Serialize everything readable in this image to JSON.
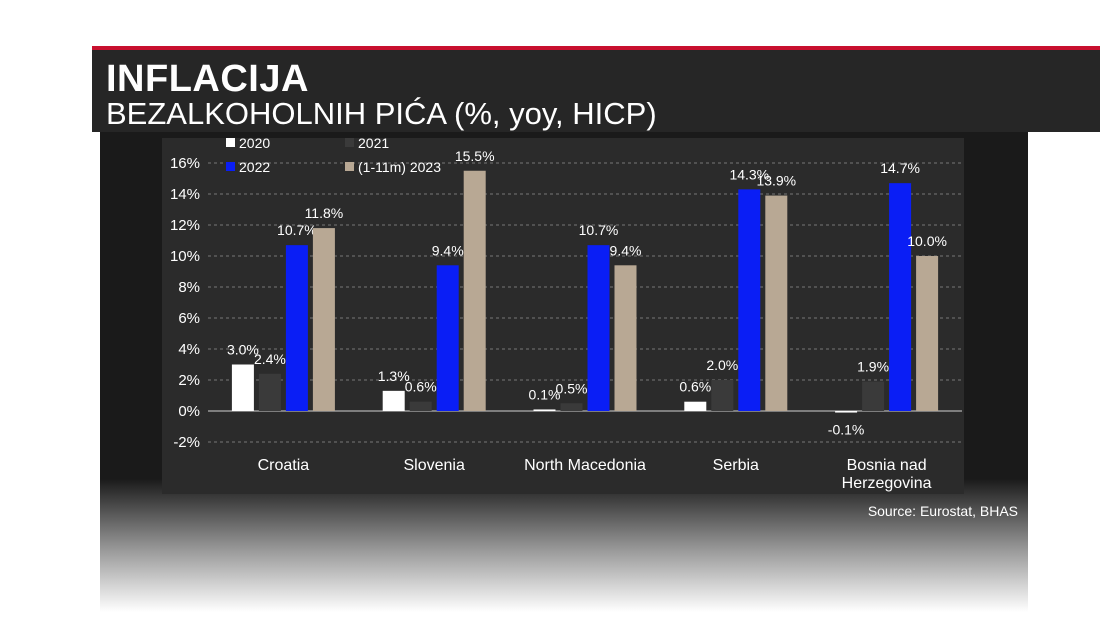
{
  "header": {
    "title": "INFLACIJA",
    "subtitle": "BEZALKOHOLNIH PIĆA (%, yoy, HICP)"
  },
  "source": "Source: Eurostat, BHAS",
  "chart_data": {
    "type": "bar",
    "categories": [
      "Croatia",
      "Slovenia",
      "North Macedonia",
      "Serbia",
      "Bosnia nad|Herzegovina"
    ],
    "series": [
      {
        "name": "2020",
        "values": [
          3.0,
          1.3,
          0.1,
          0.6,
          -0.1
        ],
        "color": "#ffffff"
      },
      {
        "name": "2021",
        "values": [
          2.4,
          0.6,
          0.5,
          2.0,
          1.9
        ],
        "color": "#3a3a3a"
      },
      {
        "name": "2022",
        "values": [
          10.7,
          9.4,
          10.7,
          14.3,
          14.7
        ],
        "color": "#0a1ef5"
      },
      {
        "name": "(1-11m) 2023",
        "values": [
          11.8,
          15.5,
          9.4,
          13.9,
          10.0
        ],
        "color": "#b8a894"
      }
    ],
    "ylim": [
      -2,
      16
    ],
    "yticks": [
      "-2%",
      "0%",
      "2%",
      "4%",
      "6%",
      "8%",
      "10%",
      "12%",
      "14%",
      "16%"
    ],
    "yaxis_format": "percent",
    "grid": true,
    "legend_position": "top-left",
    "data_labels": true
  }
}
